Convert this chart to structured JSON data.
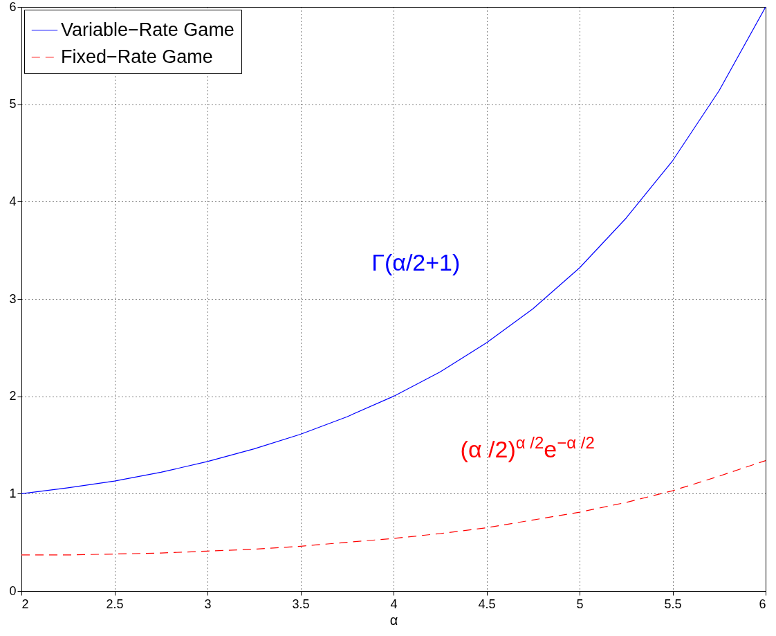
{
  "chart_data": {
    "type": "line",
    "xlabel": "α",
    "x": [
      2,
      2.25,
      2.5,
      2.75,
      3,
      3.25,
      3.5,
      3.75,
      4,
      4.25,
      4.5,
      4.75,
      5,
      5.25,
      5.5,
      5.75,
      6
    ],
    "series": [
      {
        "name": "Variable−Rate Game",
        "color": "#0000ff",
        "line_style": "solid",
        "values": [
          1,
          1.06,
          1.13,
          1.22,
          1.33,
          1.46,
          1.61,
          1.79,
          2,
          2.25,
          2.55,
          2.9,
          3.32,
          3.83,
          4.42,
          5.14,
          6
        ]
      },
      {
        "name": "Fixed−Rate Game",
        "color": "#ff0000",
        "line_style": "dashed",
        "values": [
          0.37,
          0.37,
          0.38,
          0.39,
          0.41,
          0.43,
          0.46,
          0.5,
          0.54,
          0.59,
          0.65,
          0.73,
          0.81,
          0.91,
          1.03,
          1.18,
          1.34
        ]
      }
    ],
    "annotations": [
      "Γ(α/2+1)",
      "(α /2)$^{α /2}$e$^{−α /2}$"
    ],
    "xlim": [
      2,
      6
    ],
    "xticks": [
      2,
      2.5,
      3,
      3.5,
      4,
      4.5,
      5,
      5.5,
      6
    ],
    "ylim": [
      0,
      6
    ],
    "yticks": [
      0,
      1,
      2,
      3,
      4,
      5,
      6
    ],
    "grid": true,
    "legend": "top left"
  }
}
